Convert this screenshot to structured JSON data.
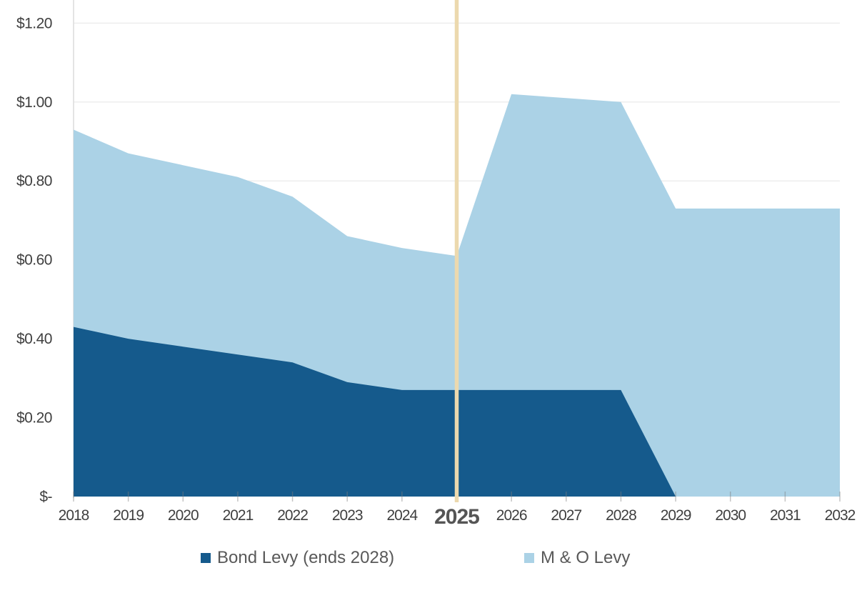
{
  "page": {
    "background": "#ffffff"
  },
  "chart_data": {
    "type": "area",
    "stacked": true,
    "title": "",
    "xlabel": "",
    "ylabel": "",
    "x": [
      "2018",
      "2019",
      "2020",
      "2021",
      "2022",
      "2023",
      "2024",
      "2025",
      "2026",
      "2027",
      "2028",
      "2029",
      "2030",
      "2031",
      "2032"
    ],
    "series": [
      {
        "name": "Bond Levy (ends 2028)",
        "color": "#155A8C",
        "values": [
          0.43,
          0.4,
          0.38,
          0.36,
          0.34,
          0.29,
          0.27,
          0.27,
          0.27,
          0.27,
          0.27,
          0.0,
          0.0,
          0.0,
          0.0
        ]
      },
      {
        "name": "M & O Levy",
        "color": "#ABD2E6",
        "values": [
          0.5,
          0.47,
          0.46,
          0.45,
          0.42,
          0.37,
          0.36,
          0.34,
          0.75,
          0.74,
          0.73,
          0.73,
          0.73,
          0.73,
          0.73
        ]
      }
    ],
    "stacked_totals": [
      0.93,
      0.87,
      0.84,
      0.81,
      0.76,
      0.66,
      0.63,
      0.61,
      1.02,
      1.01,
      1.0,
      0.73,
      0.73,
      0.73,
      0.73
    ],
    "y_ticks": [
      {
        "label": "$-",
        "value": 0.0
      },
      {
        "label": "$0.20",
        "value": 0.2
      },
      {
        "label": "$0.40",
        "value": 0.4
      },
      {
        "label": "$0.60",
        "value": 0.6
      },
      {
        "label": "$0.80",
        "value": 0.8
      },
      {
        "label": "$1.00",
        "value": 1.0
      },
      {
        "label": "$1.20",
        "value": 1.2
      }
    ],
    "ylim": [
      0,
      1.26
    ],
    "grid": true,
    "legend_position": "bottom",
    "marker_line": {
      "x": "2025",
      "color": "#ECD9AE"
    },
    "highlighted_x_tick": "2025",
    "colors": {
      "gridline": "#EDEDED",
      "axis_line": "#DCDCDC",
      "tick_mark": "rgba(125,125,125,0.45)",
      "y_label": "#404040",
      "x_label": "#3f3f3f",
      "highlight_label": "#555555",
      "legend_text": "#595959"
    }
  }
}
